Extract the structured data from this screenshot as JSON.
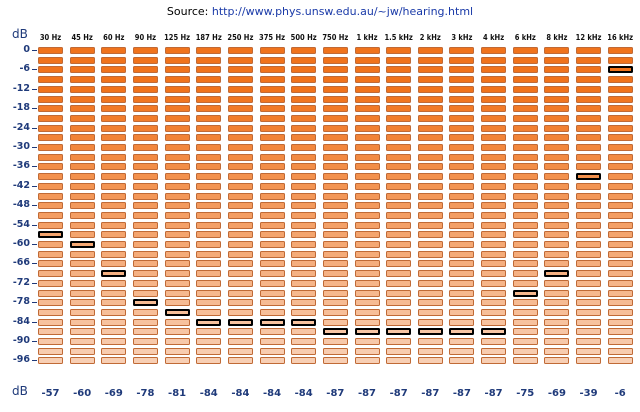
{
  "source": {
    "label": "Source:",
    "url_text": "http://www.phys.unsw.edu.au/~jw/hearing.html"
  },
  "db_label_top": "dB",
  "db_label_bottom": "dB",
  "row_step_db": 3,
  "row_count": 33,
  "db_axis_labels": [
    "0",
    "-6",
    "-12",
    "-18",
    "-24",
    "-30",
    "-36",
    "-42",
    "-48",
    "-54",
    "-60",
    "-66",
    "-72",
    "-78",
    "-84",
    "-90",
    "-96"
  ],
  "frequencies": [
    "30 Hz",
    "45 Hz",
    "60 Hz",
    "90 Hz",
    "125 Hz",
    "187 Hz",
    "250 Hz",
    "375 Hz",
    "500 Hz",
    "750 Hz",
    "1 kHz",
    "1.5 kHz",
    "2 kHz",
    "3 kHz",
    "4 kHz",
    "6 kHz",
    "8 kHz",
    "12 kHz",
    "16 kHz"
  ],
  "thresholds_db": [
    -57,
    -60,
    -69,
    -78,
    -81,
    -84,
    -84,
    -84,
    -84,
    -87,
    -87,
    -87,
    -87,
    -87,
    -87,
    -75,
    -69,
    -39,
    -6
  ],
  "threshold_labels": [
    "-57",
    "-60",
    "-69",
    "-78",
    "-81",
    "-84",
    "-84",
    "-84",
    "-84",
    "-87",
    "-87",
    "-87",
    "-87",
    "-87",
    "-87",
    "-75",
    "-69",
    "-39",
    "-6"
  ],
  "colors": {
    "cell_loud": "#f0731c",
    "cell_quiet": "#f8cfb4",
    "cell_border": "#c06a36",
    "selected_border": "#000000",
    "label_text": "#1f3a7a",
    "link": "#1a3aa8"
  }
}
